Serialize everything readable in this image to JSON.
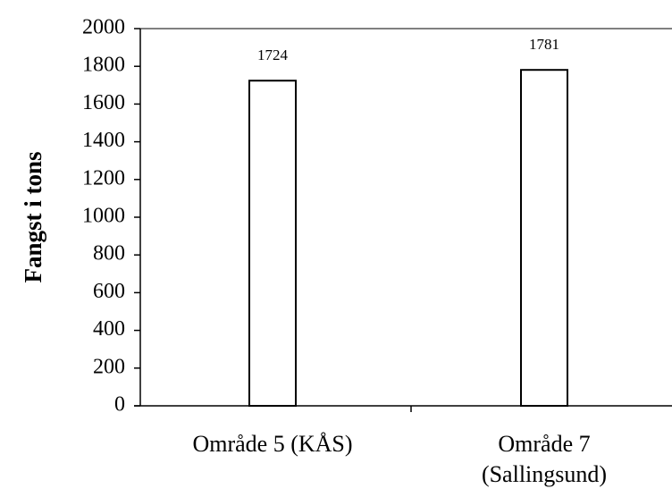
{
  "chart_data": {
    "type": "bar",
    "ylabel": "Fangst i tons",
    "categories": [
      "Område 5 (KÅS)",
      "Område 7\n(Sallingsund)"
    ],
    "values": [
      1724,
      1781
    ],
    "color": "#ffffff",
    "ylim": [
      0,
      2000
    ],
    "yticks": [
      0,
      200,
      400,
      600,
      800,
      1000,
      1200,
      1400,
      1600,
      1800,
      2000
    ]
  }
}
